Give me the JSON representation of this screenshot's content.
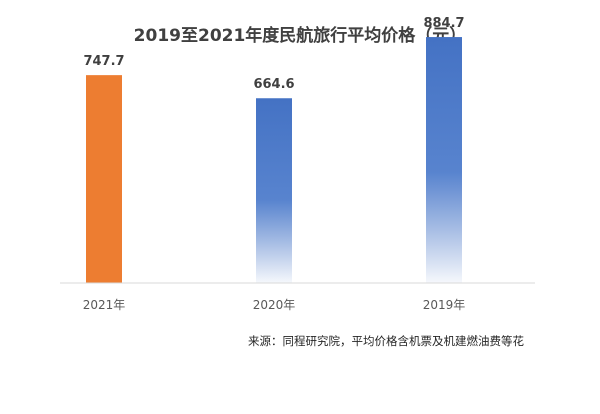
{
  "chart_data": {
    "type": "bar",
    "title": "2019至2021年度民航旅行平均价格（元）",
    "categories": [
      "2021年",
      "2020年",
      "2019年"
    ],
    "values": [
      747.7,
      664.6,
      884.7
    ],
    "value_labels": [
      "747.7",
      "664.6",
      "884.7"
    ],
    "ylim": [
      0,
      1000
    ],
    "xlabel": "",
    "ylabel": "",
    "grid": false,
    "legend": "none",
    "bar_colors": [
      "#ED7D31",
      "#4472C4",
      "#4472C4"
    ],
    "bar_styles": [
      "solid",
      "gradient",
      "gradient"
    ],
    "source": "来源：同程研究院，平均价格含机票及机建燃油费等花"
  },
  "colors": {
    "accent_orange": "#ED7D31",
    "accent_blue": "#4472C4",
    "axis_line": "#D9D9D9",
    "title": "#404040"
  }
}
